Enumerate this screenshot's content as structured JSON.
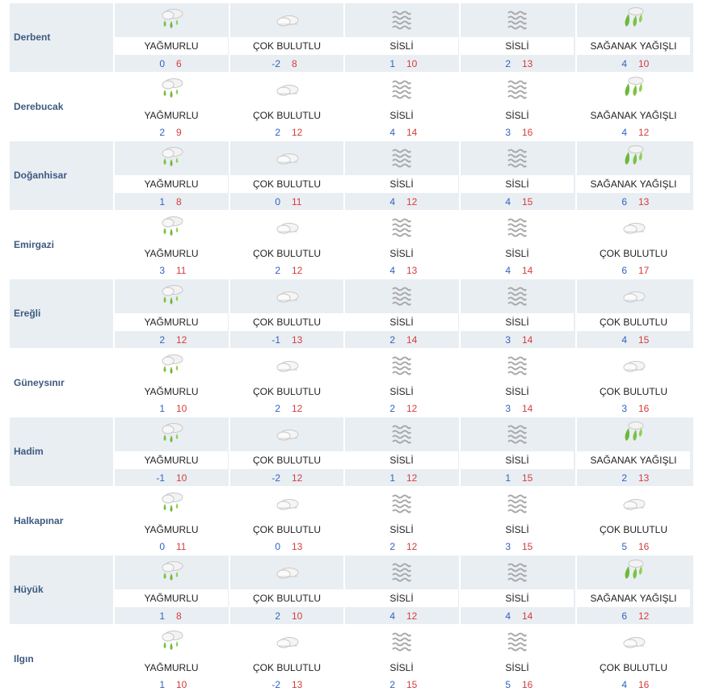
{
  "labels": {
    "rainy": "YAĞMURLU",
    "cloudy": "ÇOK BULUTLU",
    "fog": "SİSLİ",
    "shower": "SAĞANAK YAĞIŞLI"
  },
  "icons": {
    "rainy": "rain-icon",
    "cloudy": "cloud-icon",
    "fog": "fog-icon",
    "shower": "shower-icon"
  },
  "colors": {
    "min": "#2f62c2",
    "max": "#d43d3d",
    "city": "#3d5a80",
    "rain_drop": "#7cc242"
  },
  "rows": [
    {
      "city": "Derbent",
      "days": [
        {
          "cond": "rainy",
          "min": "0",
          "max": "6"
        },
        {
          "cond": "cloudy",
          "min": "-2",
          "max": "8"
        },
        {
          "cond": "fog",
          "min": "1",
          "max": "10"
        },
        {
          "cond": "fog",
          "min": "2",
          "max": "13"
        },
        {
          "cond": "shower",
          "min": "4",
          "max": "10"
        }
      ]
    },
    {
      "city": "Derebucak",
      "days": [
        {
          "cond": "rainy",
          "min": "2",
          "max": "9"
        },
        {
          "cond": "cloudy",
          "min": "2",
          "max": "12"
        },
        {
          "cond": "fog",
          "min": "4",
          "max": "14"
        },
        {
          "cond": "fog",
          "min": "3",
          "max": "16"
        },
        {
          "cond": "shower",
          "min": "4",
          "max": "12"
        }
      ]
    },
    {
      "city": "Doğanhisar",
      "days": [
        {
          "cond": "rainy",
          "min": "1",
          "max": "8"
        },
        {
          "cond": "cloudy",
          "min": "0",
          "max": "11"
        },
        {
          "cond": "fog",
          "min": "4",
          "max": "12"
        },
        {
          "cond": "fog",
          "min": "4",
          "max": "15"
        },
        {
          "cond": "shower",
          "min": "6",
          "max": "13"
        }
      ]
    },
    {
      "city": "Emirgazi",
      "days": [
        {
          "cond": "rainy",
          "min": "3",
          "max": "11"
        },
        {
          "cond": "cloudy",
          "min": "2",
          "max": "12"
        },
        {
          "cond": "fog",
          "min": "4",
          "max": "13"
        },
        {
          "cond": "fog",
          "min": "4",
          "max": "14"
        },
        {
          "cond": "cloudy",
          "min": "6",
          "max": "17"
        }
      ]
    },
    {
      "city": "Ereğli",
      "days": [
        {
          "cond": "rainy",
          "min": "2",
          "max": "12"
        },
        {
          "cond": "cloudy",
          "min": "-1",
          "max": "13"
        },
        {
          "cond": "fog",
          "min": "2",
          "max": "14"
        },
        {
          "cond": "fog",
          "min": "3",
          "max": "14"
        },
        {
          "cond": "cloudy",
          "min": "4",
          "max": "15"
        }
      ]
    },
    {
      "city": "Güneysınır",
      "days": [
        {
          "cond": "rainy",
          "min": "1",
          "max": "10"
        },
        {
          "cond": "cloudy",
          "min": "2",
          "max": "12"
        },
        {
          "cond": "fog",
          "min": "2",
          "max": "12"
        },
        {
          "cond": "fog",
          "min": "3",
          "max": "14"
        },
        {
          "cond": "cloudy",
          "min": "3",
          "max": "16"
        }
      ]
    },
    {
      "city": "Hadim",
      "days": [
        {
          "cond": "rainy",
          "min": "-1",
          "max": "10"
        },
        {
          "cond": "cloudy",
          "min": "-2",
          "max": "12"
        },
        {
          "cond": "fog",
          "min": "1",
          "max": "12"
        },
        {
          "cond": "fog",
          "min": "1",
          "max": "15"
        },
        {
          "cond": "shower",
          "min": "2",
          "max": "13"
        }
      ]
    },
    {
      "city": "Halkapınar",
      "days": [
        {
          "cond": "rainy",
          "min": "0",
          "max": "11"
        },
        {
          "cond": "cloudy",
          "min": "0",
          "max": "13"
        },
        {
          "cond": "fog",
          "min": "2",
          "max": "12"
        },
        {
          "cond": "fog",
          "min": "3",
          "max": "15"
        },
        {
          "cond": "cloudy",
          "min": "5",
          "max": "16"
        }
      ]
    },
    {
      "city": "Hüyük",
      "days": [
        {
          "cond": "rainy",
          "min": "1",
          "max": "8"
        },
        {
          "cond": "cloudy",
          "min": "2",
          "max": "10"
        },
        {
          "cond": "fog",
          "min": "4",
          "max": "12"
        },
        {
          "cond": "fog",
          "min": "4",
          "max": "14"
        },
        {
          "cond": "shower",
          "min": "6",
          "max": "12"
        }
      ]
    },
    {
      "city": "Ilgın",
      "days": [
        {
          "cond": "rainy",
          "min": "1",
          "max": "10"
        },
        {
          "cond": "cloudy",
          "min": "-2",
          "max": "13"
        },
        {
          "cond": "fog",
          "min": "2",
          "max": "15"
        },
        {
          "cond": "fog",
          "min": "5",
          "max": "16"
        },
        {
          "cond": "cloudy",
          "min": "4",
          "max": "16"
        }
      ]
    }
  ]
}
